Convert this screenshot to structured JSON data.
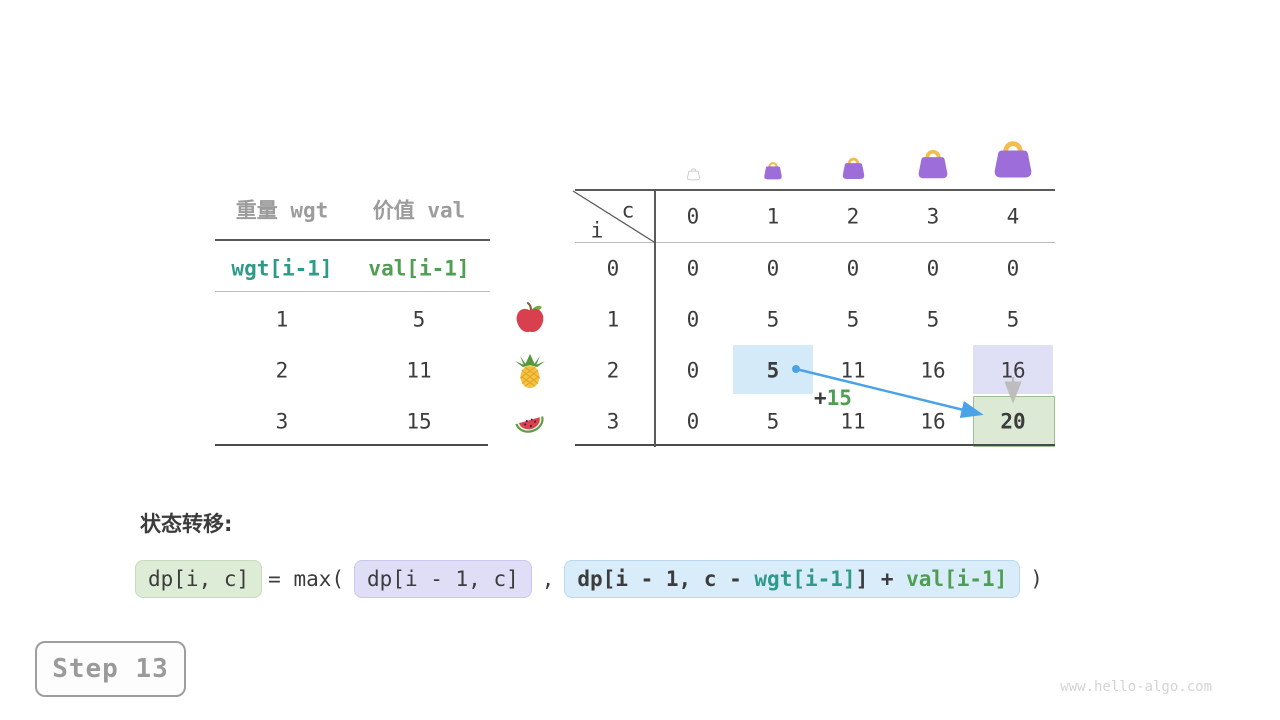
{
  "items_table": {
    "col_headers": [
      "重量 wgt",
      "价值 val"
    ],
    "var_row": [
      "wgt[i-1]",
      "val[i-1]"
    ],
    "rows": [
      [
        "1",
        "5"
      ],
      [
        "2",
        "11"
      ],
      [
        "3",
        "15"
      ]
    ],
    "fruit_icons": [
      "apple-icon",
      "pineapple-icon",
      "watermelon-icon"
    ]
  },
  "dp_table": {
    "corner_col_label": "c",
    "corner_row_label": "i",
    "col_headers": [
      "0",
      "1",
      "2",
      "3",
      "4"
    ],
    "row_headers": [
      "0",
      "1",
      "2",
      "3"
    ],
    "values": [
      [
        "0",
        "0",
        "0",
        "0",
        "0"
      ],
      [
        "0",
        "5",
        "5",
        "5",
        "5"
      ],
      [
        "0",
        "5",
        "11",
        "16",
        "16"
      ],
      [
        "0",
        "5",
        "11",
        "16",
        "20"
      ]
    ],
    "highlights": [
      {
        "row": 2,
        "col": 1,
        "style": "source-blue",
        "bold": true
      },
      {
        "row": 2,
        "col": 4,
        "style": "prev-lavender",
        "bold": false
      },
      {
        "row": 3,
        "col": 4,
        "style": "result-green",
        "bold": true
      }
    ],
    "capacity_icons": [
      {
        "name": "bag-empty-icon",
        "variant": "empty",
        "size": 15
      },
      {
        "name": "bag-icon",
        "variant": "filled",
        "size": 22
      },
      {
        "name": "bag-icon",
        "variant": "filled",
        "size": 27
      },
      {
        "name": "bag-icon",
        "variant": "filled",
        "size": 36
      },
      {
        "name": "bag-icon",
        "variant": "filled",
        "size": 46
      }
    ],
    "transition_annotation": {
      "plus": "+",
      "value": "15"
    }
  },
  "formula": {
    "section_label": "状态转移:",
    "lhs": "dp[i, c]",
    "equals_max": "= max(",
    "arg1": "dp[i - 1, c]",
    "separator": ",",
    "arg2": {
      "p1": "dp[i - 1, c - ",
      "wgt": "wgt[i-1]",
      "p2": "] + ",
      "val": "val[i-1]"
    },
    "close_paren": ")"
  },
  "step_badge": {
    "label": "Step 13"
  },
  "watermark": "www.hello-algo.com",
  "colors": {
    "arrow_blue": "#4aa3e8",
    "arrow_gray": "#bdbdbd",
    "teal": "#2f9a87",
    "green": "#4f9e52",
    "highlight_blue": "#d5eaf8",
    "highlight_lavender": "#dfe0f6",
    "highlight_green": "#dcead5",
    "highlight_green_border": "#9fbe96",
    "bag_purple": "#9d6ed9",
    "bag_handle": "#f2bd4e",
    "header_gray": "#9c9c9c",
    "text_dark": "#3c3c3c"
  }
}
